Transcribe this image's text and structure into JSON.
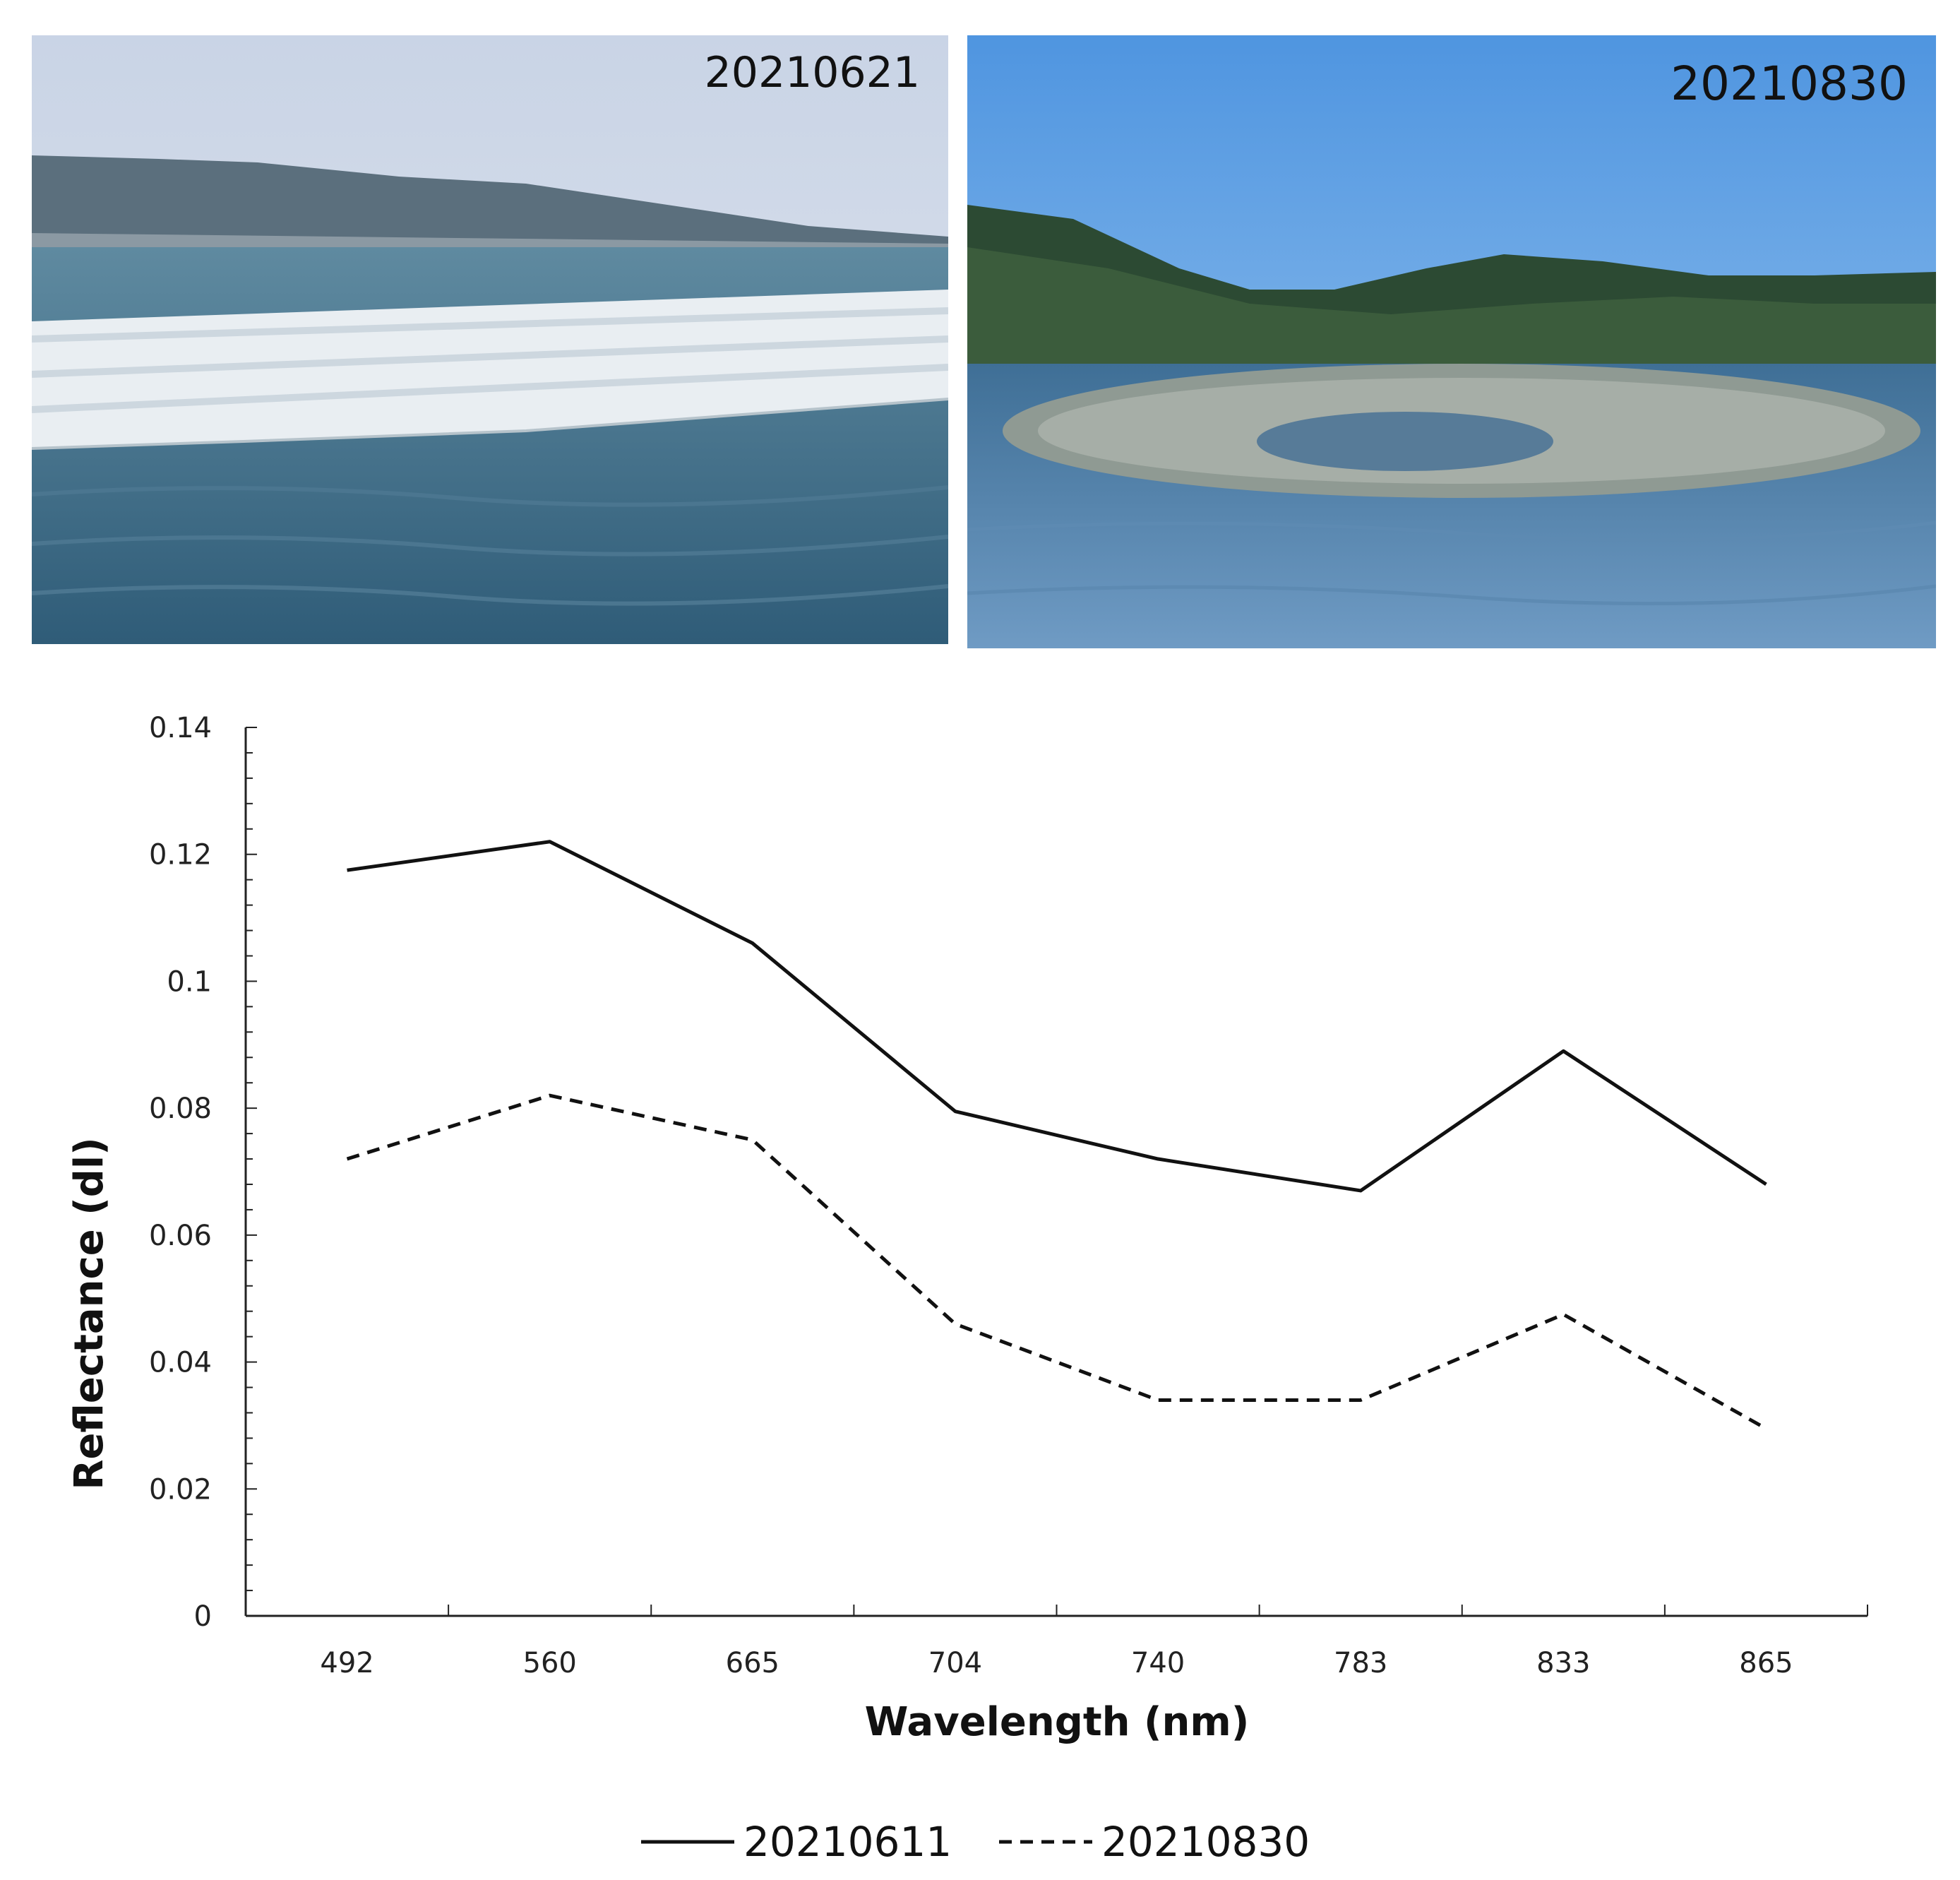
{
  "photos": [
    {
      "label": "20210621"
    },
    {
      "label": "20210830"
    }
  ],
  "chart_data": {
    "type": "line",
    "categories": [
      "492",
      "560",
      "665",
      "704",
      "740",
      "783",
      "833",
      "865"
    ],
    "series": [
      {
        "name": "20210611",
        "values": [
          0.1175,
          0.122,
          0.106,
          0.0795,
          0.072,
          0.067,
          0.089,
          0.068
        ],
        "style": "solid",
        "color": "#111111"
      },
      {
        "name": "20210830",
        "values": [
          0.072,
          0.082,
          0.075,
          0.046,
          0.034,
          0.034,
          0.0475,
          0.0295
        ],
        "style": "dashed",
        "color": "#111111"
      }
    ],
    "title": "",
    "xlabel": "Wavelength (nm)",
    "ylabel": "Reflectance (dl)",
    "ylim": [
      0,
      0.14
    ],
    "yticks": [
      "0",
      "0.02",
      "0.04",
      "0.06",
      "0.08",
      "0.1",
      "0.12",
      "0.14"
    ],
    "grid": false,
    "legend": "bottom"
  }
}
